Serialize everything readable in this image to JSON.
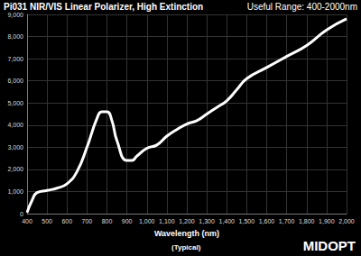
{
  "chart_data": {
    "type": "line",
    "title": "Pi031 NIR/VIS Linear Polarizer, High Extinction",
    "subtitle": "Useful Range: 400-2000nm",
    "xlabel": "Wavelength (nm)",
    "note": "(Typical)",
    "logo": "MIDOPT",
    "x": [
      400,
      425,
      450,
      500,
      550,
      600,
      650,
      700,
      750,
      775,
      800,
      825,
      850,
      900,
      925,
      950,
      1000,
      1050,
      1100,
      1150,
      1200,
      1250,
      1300,
      1350,
      1400,
      1450,
      1500,
      1600,
      1700,
      1800,
      1900,
      2000
    ],
    "values": [
      50,
      600,
      950,
      1050,
      1150,
      1350,
      1900,
      3000,
      4300,
      4600,
      4600,
      4200,
      3300,
      2400,
      2400,
      2600,
      2950,
      3100,
      3500,
      3800,
      4050,
      4200,
      4500,
      4800,
      5100,
      5600,
      6100,
      6600,
      7100,
      7600,
      8300,
      8800
    ],
    "color": "#ffffff",
    "xlim": [
      400,
      2000
    ],
    "xticks": [
      400,
      500,
      600,
      700,
      800,
      900,
      1000,
      1100,
      1200,
      1300,
      1400,
      1500,
      1600,
      1700,
      1800,
      1900,
      2000
    ],
    "ylim": [
      0,
      9000
    ],
    "yticks": [
      0,
      1000,
      2000,
      3000,
      4000,
      5000,
      6000,
      7000,
      8000,
      9000
    ],
    "grid": true
  }
}
